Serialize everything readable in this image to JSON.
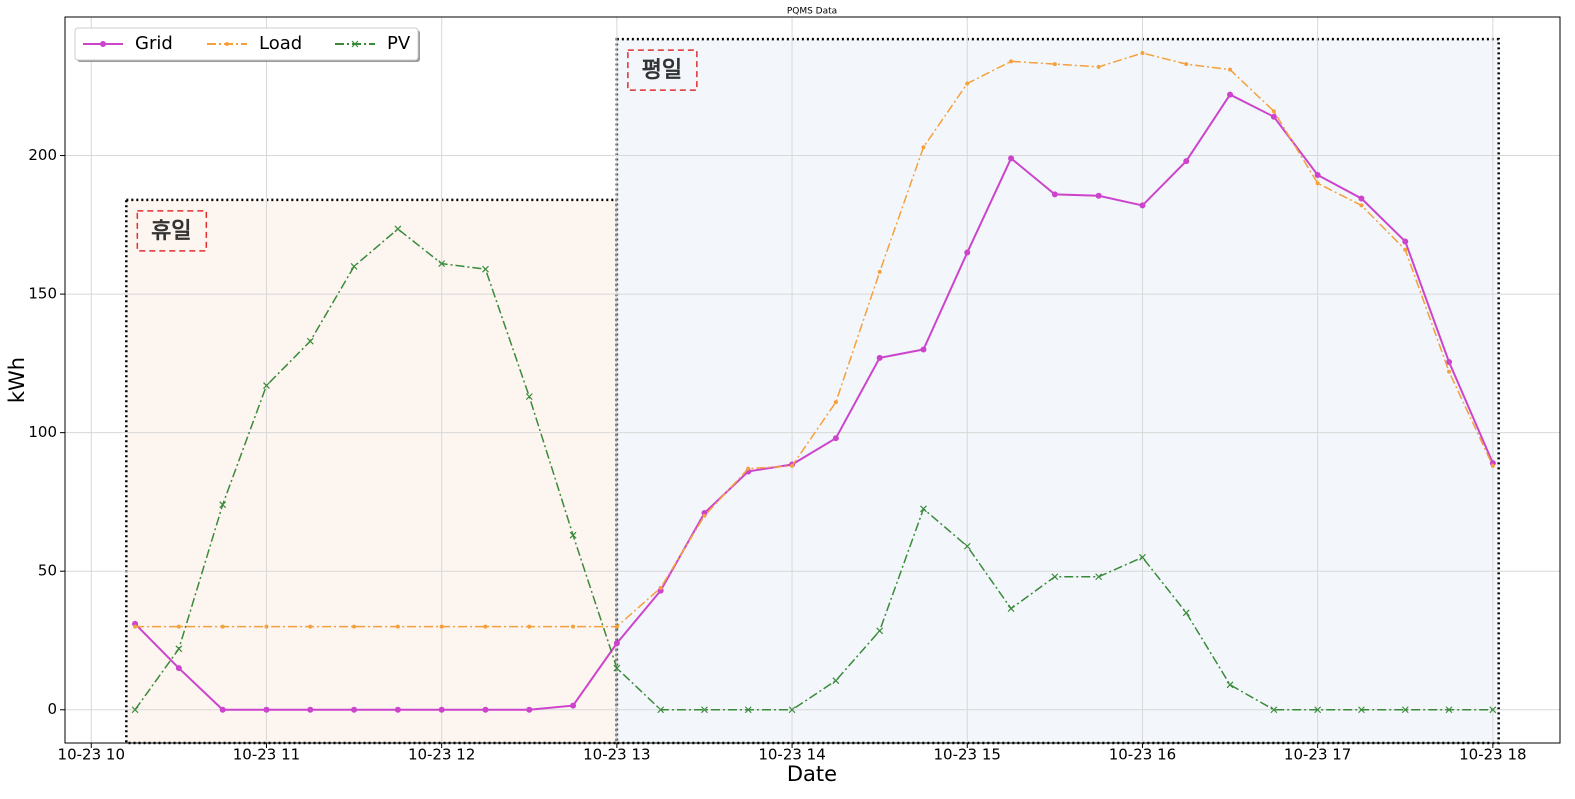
{
  "chart_data": {
    "type": "line",
    "title": "PQMS Data",
    "xlabel": "Date",
    "ylabel": "kWh",
    "x": [
      "10-23 10:15",
      "10-23 10:30",
      "10-23 10:45",
      "10-23 11:00",
      "10-23 11:15",
      "10-23 11:30",
      "10-23 11:45",
      "10-23 12:00",
      "10-23 12:15",
      "10-23 12:30",
      "10-23 12:45",
      "10-23 13:00",
      "10-23 13:15",
      "10-23 13:30",
      "10-23 13:45",
      "10-23 14:00",
      "10-23 14:15",
      "10-23 14:30",
      "10-23 14:45",
      "10-23 15:00",
      "10-23 15:15",
      "10-23 15:30",
      "10-23 15:45",
      "10-23 16:00",
      "10-23 16:15",
      "10-23 16:30",
      "10-23 16:45",
      "10-23 17:00",
      "10-23 17:15",
      "10-23 17:30",
      "10-23 17:45",
      "10-23 18:00"
    ],
    "series": [
      {
        "name": "Grid",
        "color": "#cc44cc",
        "style": "solid",
        "marker": "circle",
        "values": [
          31,
          15,
          0,
          0,
          0,
          0,
          0,
          0,
          0,
          0,
          1.5,
          24,
          43,
          71,
          86,
          88.5,
          98,
          127,
          130,
          165,
          199,
          186,
          185.5,
          182,
          198,
          222,
          214,
          193,
          184.5,
          169,
          125.5,
          89
        ]
      },
      {
        "name": "Load",
        "color": "#f5a03c",
        "style": "dashdot",
        "marker": "dot",
        "values": [
          30,
          30,
          30,
          30,
          30,
          30,
          30,
          30,
          30,
          30,
          30,
          30,
          44,
          70,
          87,
          88,
          111,
          158,
          203,
          226,
          234,
          233,
          232,
          237,
          233,
          231,
          216,
          190,
          182,
          166,
          122,
          88
        ]
      },
      {
        "name": "PV",
        "color": "#3a8a3a",
        "style": "dashdot",
        "marker": "x",
        "values": [
          0,
          22,
          74,
          117,
          133,
          160,
          173.5,
          161,
          159,
          113,
          63,
          15,
          0,
          0,
          0,
          0,
          10.5,
          28.5,
          72.5,
          59,
          36.5,
          48,
          48,
          55,
          35,
          9,
          0,
          0,
          0,
          0,
          0,
          0
        ]
      }
    ],
    "regions": [
      {
        "label": "휴일",
        "start": "10-23 10:12",
        "end": "10-23 13:00",
        "top": 184,
        "color": "#fcf5f0"
      },
      {
        "label": "평일",
        "start": "10-23 13:00",
        "end": "10-23 18:02",
        "top": 242,
        "color": "#f3f7fb"
      }
    ],
    "xlim": [
      "10-23 09:51",
      "10-23 18:23"
    ],
    "xticks": [
      {
        "value": "10-23 10:00",
        "label": "10-23 10"
      },
      {
        "value": "10-23 11:00",
        "label": "10-23 11"
      },
      {
        "value": "10-23 12:00",
        "label": "10-23 12"
      },
      {
        "value": "10-23 13:00",
        "label": "10-23 13"
      },
      {
        "value": "10-23 14:00",
        "label": "10-23 14"
      },
      {
        "value": "10-23 15:00",
        "label": "10-23 15"
      },
      {
        "value": "10-23 16:00",
        "label": "10-23 16"
      },
      {
        "value": "10-23 17:00",
        "label": "10-23 17"
      },
      {
        "value": "10-23 18:00",
        "label": "10-23 18"
      }
    ],
    "ylim": [
      -12,
      250
    ],
    "yticks": [
      0,
      50,
      100,
      150,
      200
    ],
    "grid": true,
    "legend": "upper left"
  }
}
